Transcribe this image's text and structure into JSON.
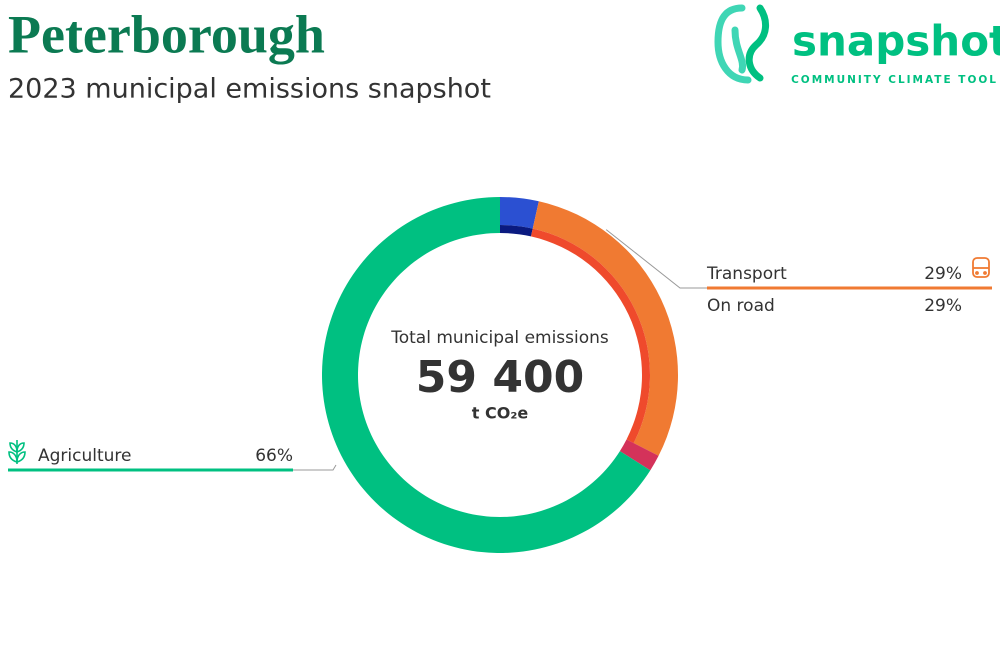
{
  "chart_data": {
    "type": "donut",
    "title": "Peterborough",
    "subtitle": "2023 municipal emissions snapshot",
    "center_label": "Total municipal emissions",
    "total": {
      "value": 59400,
      "label": "59 400"
    },
    "unit": "t CO₂e",
    "categories": [
      null,
      "Transport",
      null,
      "Agriculture"
    ],
    "values": [
      3.5,
      29,
      1.5,
      66
    ],
    "value_labels": [
      null,
      "29%",
      null,
      "66%"
    ],
    "colors": [
      "#2b50d2",
      "#f07a32",
      "#d4325a",
      "#00c081"
    ],
    "subcategories": [
      null,
      "On road",
      null,
      null
    ],
    "subvalues": [
      3.5,
      29,
      null,
      null
    ],
    "subvalue_labels": [
      null,
      "29%",
      null,
      null
    ],
    "subcolors": [
      "#0a1a80",
      "#ef4a2c",
      null,
      null
    ]
  },
  "logo": {
    "name": "snapshot",
    "tagline": "COMMUNITY CLIMATE TOOL"
  }
}
